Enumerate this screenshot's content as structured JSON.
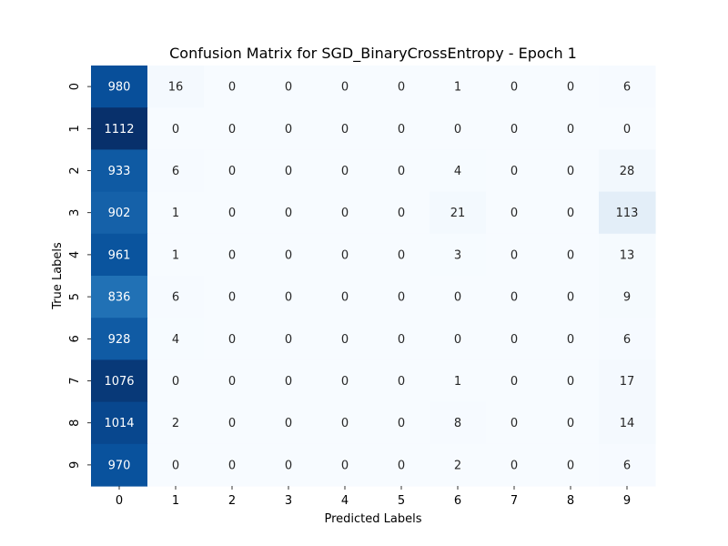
{
  "chart_data": {
    "type": "heatmap",
    "title": "Confusion Matrix for SGD_BinaryCrossEntropy - Epoch 1",
    "xlabel": "Predicted Labels",
    "ylabel": "True Labels",
    "x_categories": [
      "0",
      "1",
      "2",
      "3",
      "4",
      "5",
      "6",
      "7",
      "8",
      "9"
    ],
    "y_categories": [
      "0",
      "1",
      "2",
      "3",
      "4",
      "5",
      "6",
      "7",
      "8",
      "9"
    ],
    "values": [
      [
        980,
        16,
        0,
        0,
        0,
        0,
        1,
        0,
        0,
        6
      ],
      [
        1112,
        0,
        0,
        0,
        0,
        0,
        0,
        0,
        0,
        0
      ],
      [
        933,
        6,
        0,
        0,
        0,
        0,
        4,
        0,
        0,
        28
      ],
      [
        902,
        1,
        0,
        0,
        0,
        0,
        21,
        0,
        0,
        113
      ],
      [
        961,
        1,
        0,
        0,
        0,
        0,
        3,
        0,
        0,
        13
      ],
      [
        836,
        6,
        0,
        0,
        0,
        0,
        0,
        0,
        0,
        9
      ],
      [
        928,
        4,
        0,
        0,
        0,
        0,
        0,
        0,
        0,
        6
      ],
      [
        1076,
        0,
        0,
        0,
        0,
        0,
        1,
        0,
        0,
        17
      ],
      [
        1014,
        2,
        0,
        0,
        0,
        0,
        8,
        0,
        0,
        14
      ],
      [
        970,
        0,
        0,
        0,
        0,
        0,
        2,
        0,
        0,
        6
      ]
    ],
    "colormap": "Blues",
    "value_range": [
      0,
      1112
    ],
    "annotations": true,
    "colorbar": false,
    "grid": false
  }
}
